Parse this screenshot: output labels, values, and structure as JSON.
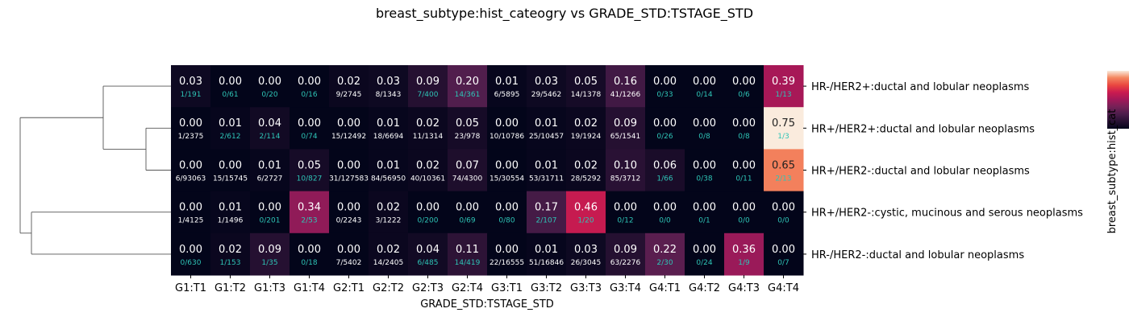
{
  "chart_data": {
    "type": "heatmap",
    "title": "breast_subtype:hist_cateogry vs GRADE_STD:TSTAGE_STD",
    "xlabel": "GRADE_STD:TSTAGE_STD",
    "colorbar_label": "breast_subtype:hist_cat",
    "columns": [
      "G1:T1",
      "G1:T2",
      "G1:T3",
      "G1:T4",
      "G2:T1",
      "G2:T2",
      "G2:T3",
      "G2:T4",
      "G3:T1",
      "G3:T2",
      "G3:T3",
      "G3:T4",
      "G4:T1",
      "G4:T2",
      "G4:T3",
      "G4:T4"
    ],
    "rows": [
      "HR-/HER2+:ductal and lobular neoplasms",
      "HR+/HER2+:ductal and lobular neoplasms",
      "HR+/HER2-:ductal and lobular neoplasms",
      "HR+/HER2-:cystic, mucinous and serous neoplasms",
      "HR-/HER2-:ductal and lobular neoplasms"
    ],
    "values": [
      [
        0.03,
        0.0,
        0.0,
        0.0,
        0.02,
        0.03,
        0.09,
        0.2,
        0.01,
        0.03,
        0.05,
        0.16,
        0.0,
        0.0,
        0.0,
        0.39
      ],
      [
        0.0,
        0.01,
        0.04,
        0.0,
        0.0,
        0.01,
        0.02,
        0.05,
        0.0,
        0.01,
        0.02,
        0.09,
        0.0,
        0.0,
        0.0,
        0.75
      ],
      [
        0.0,
        0.0,
        0.01,
        0.05,
        0.0,
        0.01,
        0.02,
        0.07,
        0.0,
        0.01,
        0.02,
        0.1,
        0.06,
        0.0,
        0.0,
        0.65
      ],
      [
        0.0,
        0.01,
        0.0,
        0.34,
        0.0,
        0.02,
        0.0,
        0.0,
        0.0,
        0.17,
        0.46,
        0.0,
        0.0,
        0.0,
        0.0,
        0.0
      ],
      [
        0.0,
        0.02,
        0.09,
        0.0,
        0.0,
        0.02,
        0.04,
        0.11,
        0.0,
        0.01,
        0.03,
        0.09,
        0.22,
        0.0,
        0.36,
        0.0
      ]
    ],
    "value_labels": [
      [
        "0.03",
        "0.00",
        "0.00",
        "0.00",
        "0.02",
        "0.03",
        "0.09",
        "0.20",
        "0.01",
        "0.03",
        "0.05",
        "0.16",
        "0.00",
        "0.00",
        "0.00",
        "0.39"
      ],
      [
        "0.00",
        "0.01",
        "0.04",
        "0.00",
        "0.00",
        "0.01",
        "0.02",
        "0.05",
        "0.00",
        "0.01",
        "0.02",
        "0.09",
        "0.00",
        "0.00",
        "0.00",
        "0.75"
      ],
      [
        "0.00",
        "0.00",
        "0.01",
        "0.05",
        "0.00",
        "0.01",
        "0.02",
        "0.07",
        "0.00",
        "0.01",
        "0.02",
        "0.10",
        "0.06",
        "0.00",
        "0.00",
        "0.65"
      ],
      [
        "0.00",
        "0.01",
        "0.00",
        "0.34",
        "0.00",
        "0.02",
        "0.00",
        "0.00",
        "0.00",
        "0.17",
        "0.46",
        "0.00",
        "0.00",
        "0.00",
        "0.00",
        "0.00"
      ],
      [
        "0.00",
        "0.02",
        "0.09",
        "0.00",
        "0.00",
        "0.02",
        "0.04",
        "0.11",
        "0.00",
        "0.01",
        "0.03",
        "0.09",
        "0.22",
        "0.00",
        "0.36",
        "0.00"
      ]
    ],
    "counts": [
      [
        "1/191",
        "0/61",
        "0/20",
        "0/16",
        "9/2745",
        "8/1343",
        "7/400",
        "14/361",
        "6/5895",
        "29/5462",
        "14/1378",
        "41/1266",
        "0/33",
        "0/14",
        "0/6",
        "1/13"
      ],
      [
        "1/2375",
        "2/612",
        "2/114",
        "0/74",
        "15/12492",
        "18/6694",
        "11/1314",
        "23/978",
        "10/10786",
        "25/10457",
        "19/1924",
        "65/1541",
        "0/26",
        "0/8",
        "0/8",
        "1/3"
      ],
      [
        "6/93063",
        "15/15745",
        "6/2727",
        "10/827",
        "31/127583",
        "84/56950",
        "40/10361",
        "74/4300",
        "15/30554",
        "53/31711",
        "28/5292",
        "85/3712",
        "1/66",
        "0/38",
        "0/11",
        "2/13"
      ],
      [
        "1/4125",
        "1/1496",
        "0/201",
        "2/53",
        "0/2243",
        "3/1222",
        "0/200",
        "0/69",
        "0/80",
        "2/107",
        "1/20",
        "0/12",
        "0/0",
        "0/1",
        "0/0",
        "0/0"
      ],
      [
        "0/630",
        "1/153",
        "1/35",
        "0/18",
        "7/5402",
        "14/2405",
        "6/485",
        "14/419",
        "22/16555",
        "51/16846",
        "26/3045",
        "63/2276",
        "2/30",
        "0/24",
        "1/9",
        "0/7"
      ]
    ],
    "low_count_color": "#2ec4b6",
    "colormap": "rocket",
    "vmin": 0,
    "vmax": 0.75,
    "dendrogram": "rows"
  }
}
